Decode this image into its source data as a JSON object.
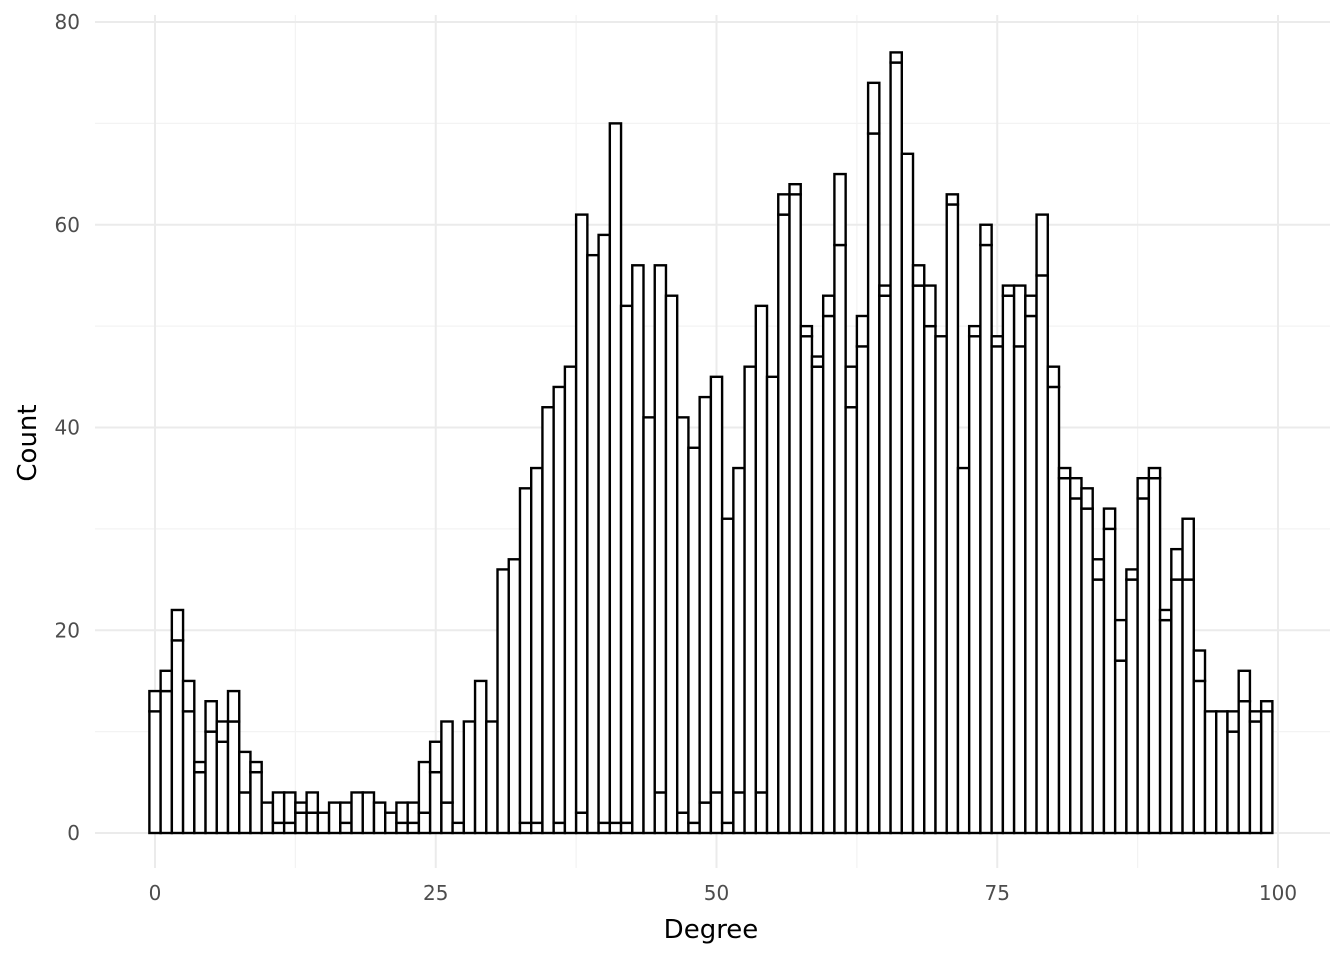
{
  "chart_data": {
    "type": "bar",
    "subtype": "stacked-histogram",
    "title": "",
    "xlabel": "Degree",
    "ylabel": "Count",
    "xlim": [
      -0.5,
      99.5
    ],
    "ylim": [
      0,
      80
    ],
    "x_ticks": [
      "0",
      "25",
      "50",
      "75",
      "100"
    ],
    "y_ticks": [
      "0",
      "20",
      "40",
      "60",
      "80"
    ],
    "grid": true,
    "legend": "none",
    "bar_fill": "#ffffff",
    "bar_stroke": "#000000",
    "categories": [
      0,
      1,
      2,
      3,
      4,
      5,
      6,
      7,
      8,
      9,
      10,
      11,
      12,
      13,
      14,
      15,
      16,
      17,
      18,
      19,
      20,
      21,
      22,
      23,
      24,
      25,
      26,
      27,
      28,
      29,
      30,
      31,
      32,
      33,
      34,
      35,
      36,
      37,
      38,
      39,
      40,
      41,
      42,
      43,
      44,
      45,
      46,
      47,
      48,
      49,
      50,
      51,
      52,
      53,
      54,
      55,
      56,
      57,
      58,
      59,
      60,
      61,
      62,
      63,
      64,
      65,
      66,
      67,
      68,
      69,
      70,
      71,
      72,
      73,
      74,
      75,
      76,
      77,
      78,
      79,
      80,
      81,
      82,
      83,
      84,
      85,
      86,
      87,
      88,
      89,
      90,
      91,
      92,
      93,
      94,
      95,
      96,
      97,
      98,
      99
    ],
    "series": [
      {
        "values": [
          12,
          14,
          19,
          12,
          6,
          10,
          9,
          11,
          4,
          6,
          0,
          1,
          1,
          2,
          2,
          0,
          0,
          1,
          0,
          0,
          0,
          0,
          1,
          1,
          2,
          6,
          3,
          0,
          0,
          0,
          0,
          0,
          0,
          1,
          1,
          0,
          1,
          0,
          2,
          0,
          1,
          1,
          1,
          0,
          0,
          4,
          0,
          2,
          1,
          3,
          4,
          1,
          4,
          0,
          4,
          0,
          61,
          63,
          49,
          46,
          51,
          58,
          42,
          48,
          69,
          53,
          76,
          67,
          54,
          50,
          49,
          62,
          36,
          49,
          58,
          48,
          53,
          48,
          51,
          55,
          44,
          35,
          33,
          32,
          25,
          30,
          17,
          25,
          33,
          35,
          21,
          25,
          25,
          15,
          12,
          12,
          10,
          13,
          11,
          12
        ]
      },
      {
        "values": [
          2,
          2,
          3,
          3,
          1,
          3,
          2,
          3,
          4,
          1,
          3,
          3,
          3,
          1,
          2,
          2,
          3,
          2,
          4,
          4,
          3,
          2,
          2,
          2,
          5,
          3,
          8,
          1,
          11,
          15,
          11,
          26,
          27,
          33,
          35,
          42,
          43,
          46,
          59,
          57,
          58,
          69,
          51,
          56,
          41,
          52,
          53,
          39,
          37,
          40,
          41,
          30,
          32,
          46,
          48,
          45,
          2,
          1,
          1,
          1,
          2,
          7,
          4,
          3,
          5,
          1,
          1,
          0,
          2,
          4,
          0,
          1,
          0,
          1,
          2,
          1,
          1,
          6,
          2,
          6,
          2,
          1,
          2,
          2,
          2,
          2,
          4,
          1,
          2,
          1,
          1,
          3,
          6,
          3,
          0,
          0,
          2,
          3,
          1,
          1
        ]
      }
    ]
  }
}
